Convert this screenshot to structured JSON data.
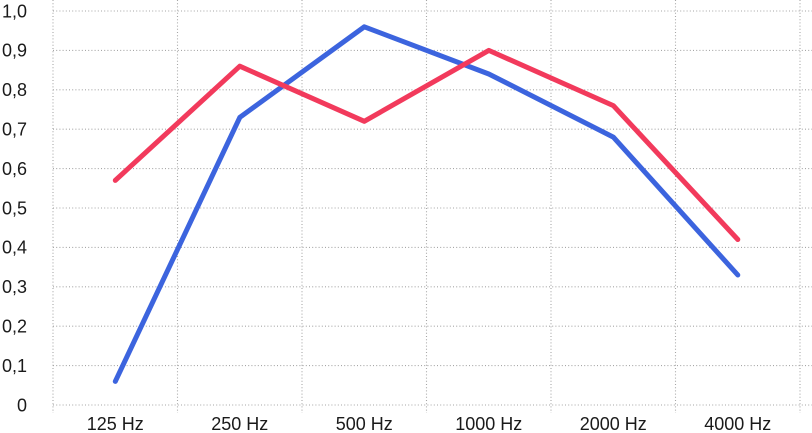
{
  "chart_data": {
    "type": "line",
    "categories": [
      "125 Hz",
      "250 Hz",
      "500 Hz",
      "1000 Hz",
      "2000 Hz",
      "4000 Hz"
    ],
    "series": [
      {
        "name": "blue-series",
        "color_key": "blue",
        "values": [
          0.06,
          0.73,
          0.96,
          0.84,
          0.68,
          0.33
        ]
      },
      {
        "name": "red-series",
        "color_key": "red",
        "values": [
          0.57,
          0.86,
          0.72,
          0.9,
          0.76,
          0.42
        ]
      }
    ],
    "y_ticks": [
      {
        "value": 0,
        "label": "0"
      },
      {
        "value": 0.1,
        "label": "0,1"
      },
      {
        "value": 0.2,
        "label": "0,2"
      },
      {
        "value": 0.3,
        "label": "0,3"
      },
      {
        "value": 0.4,
        "label": "0,4"
      },
      {
        "value": 0.5,
        "label": "0,5"
      },
      {
        "value": 0.6,
        "label": "0,6"
      },
      {
        "value": 0.7,
        "label": "0,7"
      },
      {
        "value": 0.8,
        "label": "0,8"
      },
      {
        "value": 0.9,
        "label": "0,9"
      },
      {
        "value": 1.0,
        "label": "1,0"
      }
    ],
    "ylim": [
      0,
      1.0
    ],
    "grid": {
      "horizontal": "dotted",
      "vertical": "dotted"
    },
    "legend": "none",
    "colors": {
      "blue": "#3C64DE",
      "red": "#F23A5C",
      "gridline": "#A6A6A6",
      "tick_text": "#1A1A1A",
      "background": "#FFFFFF"
    }
  }
}
